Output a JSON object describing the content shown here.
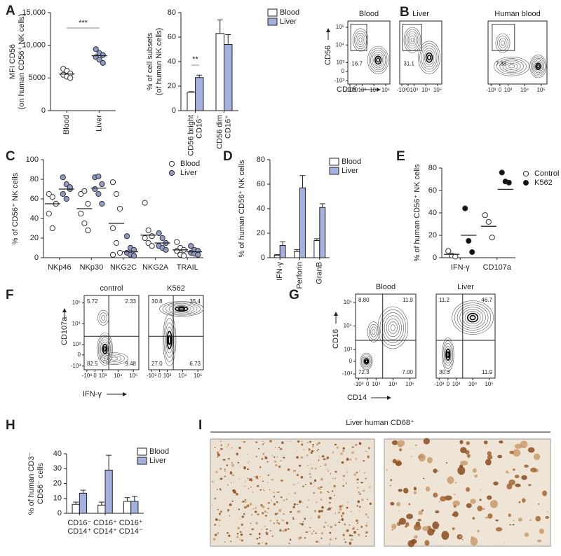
{
  "panel_labels": [
    "A",
    "B",
    "C",
    "D",
    "E",
    "F",
    "G",
    "H",
    "I"
  ],
  "chart_data": [
    {
      "type": "dot",
      "ylabel": [
        "MFI CD56",
        "(on human CD56⁺ NK cells)"
      ],
      "categories": [
        "Blood",
        "Liver"
      ],
      "colors": [
        "#ffffff",
        "#8e9bc8"
      ],
      "values": [
        [
          6400,
          6100,
          5700,
          5500,
          5200,
          5000
        ],
        [
          9400,
          8800,
          8500,
          8200,
          7800,
          7300
        ]
      ],
      "medians": [
        5600,
        8400
      ],
      "ylim": [
        0,
        15000
      ],
      "yticks": [
        0,
        5000,
        {
          "value": 10000,
          "label": "10,000"
        },
        {
          "value": 15000,
          "label": "15,000"
        }
      ],
      "significance": "***"
    },
    {
      "type": "bar",
      "ylabel": [
        "% of cell subsets",
        "(of human NK cells)"
      ],
      "categories": [
        [
          "CD56 bright",
          "CD16⁻"
        ],
        [
          "CD56 dim",
          "CD16⁺"
        ]
      ],
      "series": [
        {
          "name": "Blood",
          "color": "#ffffff",
          "values": [
            15,
            63
          ],
          "errors": [
            0.5,
            11
          ]
        },
        {
          "name": "Liver",
          "color": "#a3b0e0",
          "values": [
            27,
            54
          ],
          "errors": [
            2,
            8
          ]
        }
      ],
      "ylim": [
        0,
        80
      ],
      "yticks": [
        0,
        20,
        40,
        60,
        80
      ],
      "significance": "**"
    },
    {
      "type": "dot",
      "ylabel": [
        "% of CD56⁺ NK cells"
      ],
      "categories": [
        "NKp46",
        "NKp30",
        "NKG2C",
        "NKG2A",
        "TRAIL"
      ],
      "series": [
        {
          "name": "Blood",
          "color": "#ffffff",
          "values": [
            [
              65,
              62,
              55,
              45,
              30,
              55
            ],
            [
              65,
              68,
              55,
              45,
              35,
              28
            ],
            [
              77,
              65,
              50,
              30,
              15,
              5,
              3
            ],
            [
              56,
              28,
              22,
              20,
              15,
              12
            ],
            [
              16,
              10,
              8,
              7,
              3,
              2
            ]
          ],
          "medians": [
            55,
            50,
            35,
            23,
            8
          ]
        },
        {
          "name": "Liver",
          "color": "#8e9bc8",
          "values": [
            [
              82,
              75,
              70,
              65,
              60,
              72
            ],
            [
              82,
              83,
              75,
              70,
              65,
              55
            ],
            [
              22,
              10,
              8,
              5,
              3,
              2
            ],
            [
              25,
              20,
              15,
              12,
              10,
              8
            ],
            [
              12,
              8,
              7,
              5,
              4,
              3
            ]
          ],
          "medians": [
            70,
            71,
            6,
            15,
            6
          ]
        }
      ],
      "ylim": [
        0,
        100
      ],
      "yticks": [
        0,
        20,
        40,
        60,
        80,
        100
      ]
    },
    {
      "type": "bar",
      "ylabel": [
        "% of human CD56⁺ NK cells"
      ],
      "categories": [
        "IFN-γ",
        "Perforin",
        "GranB"
      ],
      "series": [
        {
          "name": "Blood",
          "color": "#ffffff",
          "values": [
            2,
            5,
            14
          ],
          "errors": [
            0.5,
            1.5,
            1.5
          ]
        },
        {
          "name": "Liver",
          "color": "#a3b0e0",
          "values": [
            10,
            57,
            41
          ],
          "errors": [
            3,
            10,
            3
          ]
        }
      ],
      "ylim": [
        0,
        80
      ],
      "yticks": [
        0,
        20,
        40,
        60,
        80
      ]
    },
    {
      "type": "dot",
      "ylabel": [
        "% of human CD56⁺ NK cells"
      ],
      "categories": [
        "IFN-γ",
        "CD107a"
      ],
      "series": [
        {
          "name": "Control",
          "color": "#ffffff",
          "values": [
            [
              6,
              2,
              1
            ],
            [
              38,
              32,
              18
            ]
          ],
          "medians": [
            3,
            28
          ]
        },
        {
          "name": "K562",
          "color": "#111111",
          "values": [
            [
              44,
              15,
              5
            ],
            [
              76,
              68,
              67
            ]
          ],
          "medians": [
            20,
            61
          ]
        }
      ],
      "ylim": [
        0,
        80
      ],
      "yticks": [
        0,
        20,
        40,
        60,
        80
      ]
    },
    {
      "type": "bar",
      "ylabel": [
        "% of human CD3⁻",
        "CD56⁻ cells"
      ],
      "categories": [
        [
          "CD16⁻",
          "CD14⁺"
        ],
        [
          "CD16⁺",
          "CD14⁺"
        ],
        [
          "CD16⁺",
          "CD14⁻"
        ]
      ],
      "series": [
        {
          "name": "Blood",
          "color": "#ffffff",
          "values": [
            6,
            5.5,
            8
          ],
          "errors": [
            1.5,
            2,
            2.5
          ]
        },
        {
          "name": "Liver",
          "color": "#a3b0e0",
          "values": [
            13.5,
            29,
            8
          ],
          "errors": [
            2,
            10,
            3.5
          ]
        }
      ],
      "ylim": [
        0,
        40
      ],
      "yticks": [
        0,
        10,
        20,
        30,
        40
      ]
    }
  ],
  "flow_ticks": [
    "-10³",
    "0",
    "10³",
    "10⁴",
    "10⁵"
  ],
  "flow": {
    "B": {
      "ylabel": "CD56",
      "xlabel": "CD16",
      "plots": [
        {
          "title": "Blood",
          "gate": "16.7"
        },
        {
          "title": "Liver",
          "gate": "31.1"
        },
        {
          "title": "Human blood",
          "gate": "7.88"
        }
      ]
    },
    "F": {
      "ylabel": "CD107a",
      "xlabel": "IFN-γ",
      "plots": [
        {
          "title": "control",
          "quadrants": [
            "5.72",
            "2.33",
            "82.5",
            "9.48"
          ]
        },
        {
          "title": "K562",
          "quadrants": [
            "30.8",
            "35.4",
            "27.0",
            "6.73"
          ]
        }
      ]
    },
    "G": {
      "ylabel": "CD16",
      "xlabel": "CD14",
      "plots": [
        {
          "title": "Blood",
          "quadrants": [
            "8.80",
            "11.9",
            "72.3",
            "7.00"
          ]
        },
        {
          "title": "Liver",
          "quadrants": [
            "11.2",
            "46.7",
            "30.3",
            "11.9"
          ]
        }
      ]
    }
  },
  "histology": {
    "title": "Liver human CD68⁺"
  }
}
